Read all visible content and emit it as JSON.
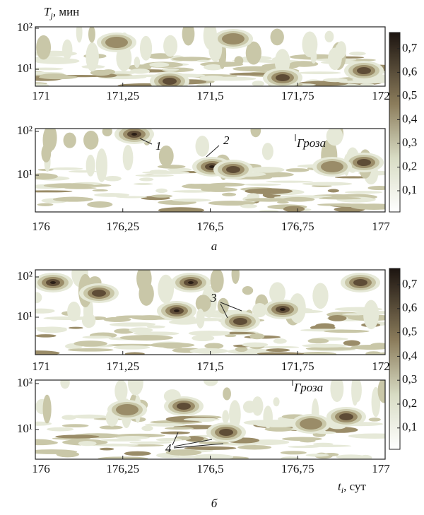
{
  "figure": {
    "y_axis_label": "T",
    "y_axis_sub": "j",
    "y_axis_unit": ", мин",
    "x_axis_label": "t",
    "x_axis_sub": "i",
    "x_axis_unit": ", сут",
    "panels": [
      {
        "xticks": [
          "171",
          "171,25",
          "171,5",
          "171,75",
          "172"
        ],
        "yticks": [
          "10²",
          "10¹"
        ],
        "annotations": []
      },
      {
        "xticks": [
          "176",
          "176,25",
          "176,5",
          "176,75",
          "177"
        ],
        "yticks": [
          "10²",
          "10¹"
        ],
        "annotations": [
          "1",
          "2",
          "Гроза"
        ]
      },
      {
        "xticks": [
          "171",
          "171,25",
          "171,5",
          "171,75",
          "172"
        ],
        "yticks": [
          "10²",
          "10¹"
        ],
        "annotations": [
          "3"
        ]
      },
      {
        "xticks": [
          "176",
          "176,25",
          "176,5",
          "176,75",
          "177"
        ],
        "yticks": [
          "10²",
          "10¹"
        ],
        "annotations": [
          "Гроза",
          "4"
        ]
      }
    ],
    "colorbars": [
      {
        "labels": [
          "0,7",
          "0,6",
          "0,5",
          "0,4",
          "0,3",
          "0,2",
          "0,1"
        ]
      },
      {
        "labels": [
          "0,7",
          "0,6",
          "0,5",
          "0,4",
          "0,3",
          "0,2",
          "0,1"
        ]
      }
    ],
    "captions": [
      "а",
      "б"
    ]
  }
}
